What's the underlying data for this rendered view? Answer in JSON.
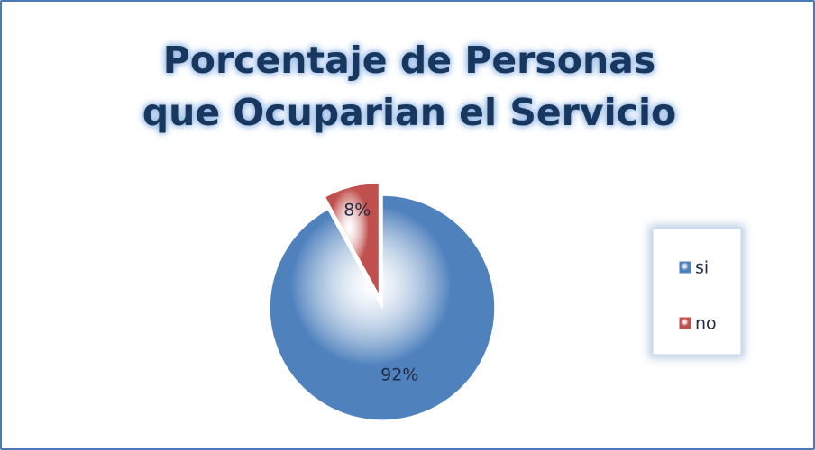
{
  "chart_data": {
    "type": "pie",
    "title": "Porcentaje de Personas que Ocuparian el Servicio",
    "categories": [
      "si",
      "no"
    ],
    "values": [
      92,
      8
    ],
    "value_labels": [
      "92%",
      "8%"
    ],
    "colors": [
      "#4f81bd",
      "#c0504d"
    ],
    "legend": "right"
  }
}
